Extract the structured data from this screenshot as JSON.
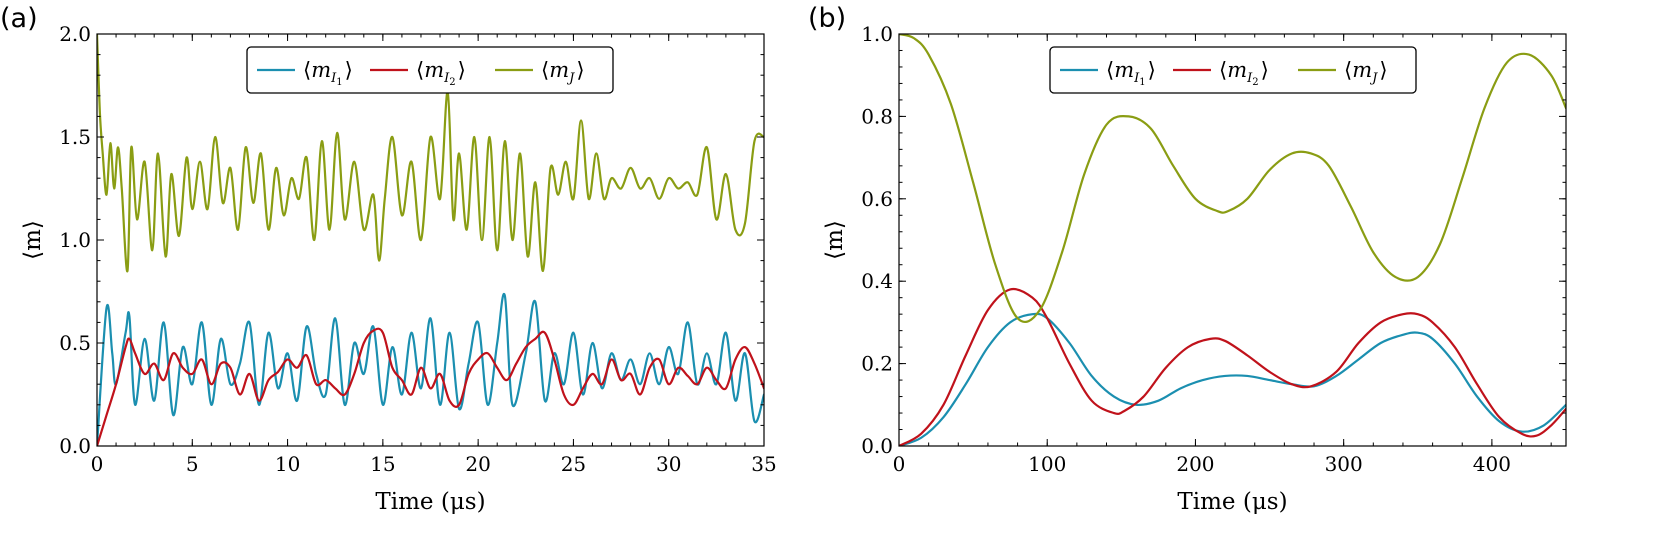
{
  "colors": {
    "mI1": "#1b8fb0",
    "mI2": "#c0121b",
    "mJ": "#8a9d13"
  },
  "chart_data": [
    {
      "type": "line",
      "panel_label": "(a)",
      "xlabel": "Time (μs)",
      "ylabel": "⟨m⟩",
      "xlim": [
        0,
        35
      ],
      "ylim": [
        0,
        2.0
      ],
      "xticks": [
        0,
        5,
        10,
        15,
        20,
        25,
        30,
        35
      ],
      "xtick_labels": [
        "0",
        "5",
        "10",
        "15",
        "20",
        "25",
        "30",
        "35"
      ],
      "yticks": [
        0,
        0.5,
        1.0,
        1.5,
        2.0
      ],
      "ytick_labels": [
        "0.0",
        "0.5",
        "1.0",
        "1.5",
        "2.0"
      ],
      "grid": false,
      "legend_position": "top-center",
      "series": [
        {
          "name": "⟨m_I1⟩",
          "base": "⟨m",
          "sub": "I",
          "subsub": "1",
          "close": "⟩",
          "color": "#1b8fb0",
          "x": [
            0,
            0.5,
            0.8,
            1.0,
            1.5,
            1.7,
            2.0,
            2.5,
            3.0,
            3.5,
            4.0,
            4.5,
            5.0,
            5.5,
            6.0,
            6.5,
            7.0,
            7.5,
            8.0,
            8.5,
            9.0,
            9.5,
            10.0,
            10.5,
            11.0,
            11.5,
            12.0,
            12.5,
            13.0,
            13.5,
            14.0,
            14.5,
            15.0,
            15.5,
            16.0,
            16.5,
            17.0,
            17.5,
            18.0,
            18.5,
            19.0,
            19.5,
            20.0,
            20.5,
            21.0,
            21.4,
            21.8,
            22.5,
            23.0,
            23.5,
            24.0,
            24.5,
            25.0,
            25.5,
            26.0,
            26.5,
            27.0,
            27.5,
            28.0,
            28.5,
            29.0,
            29.5,
            30.0,
            30.5,
            31.0,
            31.5,
            32.0,
            32.5,
            33.0,
            33.5,
            34.0,
            34.5,
            35.0
          ],
          "y": [
            0.0,
            0.67,
            0.45,
            0.3,
            0.55,
            0.63,
            0.2,
            0.52,
            0.22,
            0.6,
            0.15,
            0.48,
            0.3,
            0.6,
            0.2,
            0.52,
            0.3,
            0.4,
            0.6,
            0.2,
            0.55,
            0.28,
            0.45,
            0.22,
            0.58,
            0.35,
            0.25,
            0.62,
            0.2,
            0.5,
            0.35,
            0.58,
            0.2,
            0.48,
            0.25,
            0.55,
            0.28,
            0.62,
            0.2,
            0.55,
            0.18,
            0.4,
            0.6,
            0.2,
            0.5,
            0.73,
            0.2,
            0.45,
            0.7,
            0.22,
            0.45,
            0.3,
            0.55,
            0.25,
            0.5,
            0.28,
            0.45,
            0.32,
            0.42,
            0.3,
            0.45,
            0.3,
            0.48,
            0.35,
            0.6,
            0.3,
            0.45,
            0.3,
            0.55,
            0.22,
            0.45,
            0.12,
            0.25
          ]
        },
        {
          "name": "⟨m_I2⟩",
          "base": "⟨m",
          "sub": "I",
          "subsub": "2",
          "close": "⟩",
          "color": "#c0121b",
          "x": [
            0,
            0.5,
            1.0,
            1.5,
            1.7,
            2.0,
            2.5,
            3.0,
            3.5,
            4.0,
            4.5,
            5.0,
            5.5,
            6.0,
            6.5,
            7.0,
            7.5,
            8.0,
            8.5,
            9.0,
            9.5,
            10.0,
            10.5,
            11.0,
            11.5,
            12.0,
            12.5,
            13.0,
            13.5,
            14.0,
            14.5,
            15.0,
            15.5,
            16.0,
            16.5,
            17.0,
            17.5,
            18.0,
            18.5,
            19.0,
            19.5,
            20.0,
            20.5,
            21.0,
            21.5,
            22.0,
            22.5,
            23.0,
            23.5,
            24.0,
            24.5,
            25.0,
            25.5,
            26.0,
            26.5,
            27.0,
            27.5,
            28.0,
            28.5,
            29.0,
            29.5,
            30.0,
            30.5,
            31.0,
            31.5,
            32.0,
            32.5,
            33.0,
            33.5,
            34.0,
            34.5,
            35.0
          ],
          "y": [
            0.0,
            0.15,
            0.3,
            0.48,
            0.52,
            0.45,
            0.35,
            0.4,
            0.32,
            0.45,
            0.38,
            0.35,
            0.42,
            0.3,
            0.4,
            0.38,
            0.25,
            0.35,
            0.22,
            0.32,
            0.36,
            0.42,
            0.38,
            0.44,
            0.3,
            0.32,
            0.28,
            0.25,
            0.35,
            0.5,
            0.56,
            0.55,
            0.38,
            0.32,
            0.25,
            0.38,
            0.28,
            0.35,
            0.22,
            0.2,
            0.35,
            0.42,
            0.45,
            0.38,
            0.32,
            0.4,
            0.48,
            0.52,
            0.55,
            0.42,
            0.25,
            0.2,
            0.28,
            0.35,
            0.3,
            0.42,
            0.32,
            0.35,
            0.25,
            0.38,
            0.42,
            0.3,
            0.38,
            0.34,
            0.3,
            0.38,
            0.32,
            0.28,
            0.42,
            0.48,
            0.4,
            0.28
          ]
        },
        {
          "name": "⟨m_J⟩",
          "base": "⟨m",
          "sub": "J",
          "subsub": "",
          "close": "⟩",
          "color": "#8a9d13",
          "x": [
            0,
            0.15,
            0.3,
            0.5,
            0.7,
            0.9,
            1.1,
            1.3,
            1.6,
            1.8,
            2.1,
            2.5,
            2.9,
            3.2,
            3.6,
            3.9,
            4.3,
            4.7,
            5.0,
            5.4,
            5.8,
            6.2,
            6.6,
            7.0,
            7.4,
            7.8,
            8.2,
            8.6,
            9.0,
            9.4,
            9.8,
            10.2,
            10.6,
            11.0,
            11.4,
            11.8,
            12.2,
            12.6,
            13.0,
            13.5,
            14.0,
            14.5,
            14.8,
            15.1,
            15.5,
            16.0,
            16.5,
            17.0,
            17.5,
            18.0,
            18.4,
            18.7,
            19.0,
            19.4,
            19.8,
            20.2,
            20.6,
            21.0,
            21.4,
            21.8,
            22.2,
            22.6,
            23.0,
            23.4,
            23.8,
            24.2,
            24.6,
            25.0,
            25.4,
            25.8,
            26.2,
            26.6,
            27.0,
            27.5,
            28.0,
            28.5,
            29.0,
            29.5,
            30.0,
            30.5,
            31.0,
            31.5,
            32.0,
            32.5,
            33.0,
            33.5,
            34.0,
            34.5,
            35.0
          ],
          "y": [
            2.0,
            1.62,
            1.42,
            1.22,
            1.47,
            1.25,
            1.45,
            1.25,
            0.85,
            1.45,
            1.1,
            1.38,
            0.95,
            1.42,
            0.92,
            1.32,
            1.02,
            1.4,
            1.15,
            1.38,
            1.15,
            1.5,
            1.18,
            1.35,
            1.05,
            1.45,
            1.18,
            1.42,
            1.05,
            1.35,
            1.12,
            1.3,
            1.2,
            1.4,
            1.0,
            1.48,
            1.05,
            1.52,
            1.1,
            1.38,
            1.05,
            1.22,
            0.9,
            1.2,
            1.5,
            1.12,
            1.38,
            1.0,
            1.5,
            1.2,
            1.72,
            1.1,
            1.42,
            1.05,
            1.5,
            1.0,
            1.5,
            0.95,
            1.48,
            1.0,
            1.42,
            0.92,
            1.28,
            0.85,
            1.35,
            1.22,
            1.38,
            1.2,
            1.58,
            1.2,
            1.42,
            1.2,
            1.3,
            1.25,
            1.35,
            1.25,
            1.3,
            1.2,
            1.3,
            1.25,
            1.28,
            1.22,
            1.45,
            1.1,
            1.32,
            1.05,
            1.08,
            1.48,
            1.5
          ]
        }
      ]
    },
    {
      "type": "line",
      "panel_label": "(b)",
      "xlabel": "Time (μs)",
      "ylabel": "⟨m⟩",
      "xlim": [
        0,
        450
      ],
      "ylim": [
        0,
        1.0
      ],
      "xticks": [
        0,
        100,
        200,
        300,
        400
      ],
      "xtick_labels": [
        "0",
        "100",
        "200",
        "300",
        "400"
      ],
      "yticks": [
        0,
        0.2,
        0.4,
        0.6,
        0.8,
        1.0
      ],
      "ytick_labels": [
        "0.0",
        "0.2",
        "0.4",
        "0.6",
        "0.8",
        "1.0"
      ],
      "grid": false,
      "legend_position": "top-center",
      "series": [
        {
          "name": "⟨m_I1⟩",
          "base": "⟨m",
          "sub": "I",
          "subsub": "1",
          "close": "⟩",
          "color": "#1b8fb0",
          "x": [
            0,
            15,
            30,
            45,
            60,
            75,
            90,
            100,
            115,
            130,
            145,
            160,
            175,
            190,
            205,
            220,
            235,
            250,
            265,
            280,
            295,
            310,
            325,
            340,
            350,
            360,
            375,
            390,
            405,
            420,
            435,
            450
          ],
          "y": [
            0.0,
            0.02,
            0.07,
            0.15,
            0.24,
            0.3,
            0.32,
            0.31,
            0.25,
            0.17,
            0.12,
            0.1,
            0.11,
            0.14,
            0.16,
            0.17,
            0.17,
            0.16,
            0.15,
            0.145,
            0.17,
            0.21,
            0.25,
            0.27,
            0.275,
            0.26,
            0.2,
            0.12,
            0.06,
            0.035,
            0.05,
            0.1
          ]
        },
        {
          "name": "⟨m_I2⟩",
          "base": "⟨m",
          "sub": "I",
          "subsub": "2",
          "close": "⟩",
          "color": "#c0121b",
          "x": [
            0,
            15,
            30,
            45,
            60,
            75,
            90,
            100,
            115,
            130,
            145,
            152,
            165,
            180,
            195,
            210,
            220,
            235,
            250,
            265,
            278,
            295,
            310,
            325,
            340,
            350,
            360,
            375,
            390,
            405,
            420,
            430,
            440,
            450
          ],
          "y": [
            0.0,
            0.03,
            0.1,
            0.22,
            0.33,
            0.38,
            0.36,
            0.31,
            0.2,
            0.11,
            0.08,
            0.085,
            0.12,
            0.19,
            0.24,
            0.26,
            0.255,
            0.22,
            0.18,
            0.15,
            0.145,
            0.18,
            0.25,
            0.3,
            0.32,
            0.32,
            0.3,
            0.24,
            0.15,
            0.07,
            0.03,
            0.025,
            0.05,
            0.09
          ]
        },
        {
          "name": "⟨m_J⟩",
          "base": "⟨m",
          "sub": "J",
          "subsub": "",
          "close": "⟩",
          "color": "#8a9d13",
          "x": [
            0,
            10,
            20,
            35,
            50,
            65,
            80,
            95,
            110,
            125,
            140,
            155,
            170,
            185,
            200,
            215,
            222,
            235,
            250,
            265,
            278,
            290,
            305,
            320,
            335,
            350,
            365,
            380,
            395,
            410,
            425,
            440,
            450
          ],
          "y": [
            1.0,
            0.99,
            0.95,
            0.83,
            0.64,
            0.44,
            0.31,
            0.33,
            0.47,
            0.66,
            0.78,
            0.8,
            0.77,
            0.68,
            0.6,
            0.57,
            0.57,
            0.6,
            0.67,
            0.71,
            0.71,
            0.68,
            0.58,
            0.47,
            0.41,
            0.41,
            0.49,
            0.65,
            0.82,
            0.93,
            0.95,
            0.9,
            0.82
          ]
        }
      ]
    }
  ]
}
